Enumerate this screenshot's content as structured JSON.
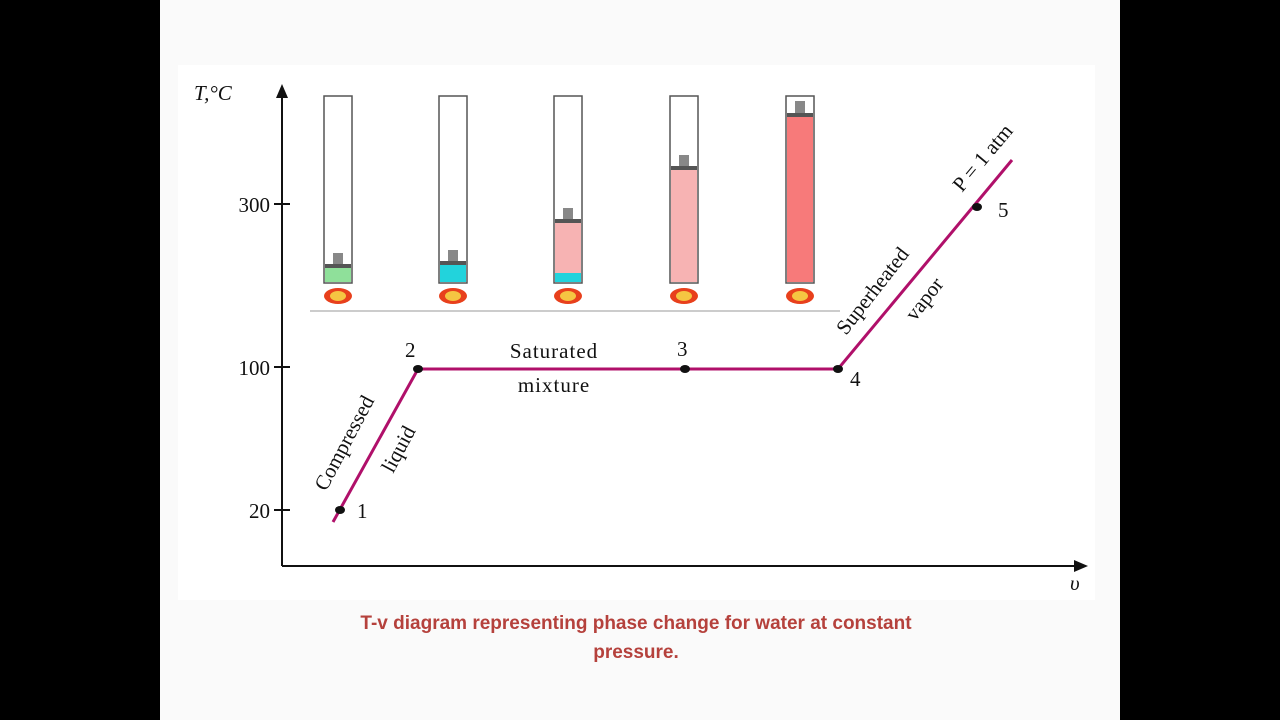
{
  "diagram": {
    "y_axis_label": "T,°C",
    "x_axis_label": "υ",
    "y_ticks": [
      "300",
      "100",
      "20"
    ],
    "points": [
      "1",
      "2",
      "3",
      "4",
      "5"
    ],
    "regions": [
      {
        "lines": [
          "Compressed",
          "liquid"
        ]
      },
      {
        "lines": [
          "Saturated",
          "mixture"
        ]
      },
      {
        "lines": [
          "Superheated",
          "vapor"
        ]
      }
    ],
    "pressure_label": "P = 1 atm"
  },
  "caption": {
    "lines": [
      "T-v diagram representing phase change for water at constant",
      "pressure."
    ]
  }
}
